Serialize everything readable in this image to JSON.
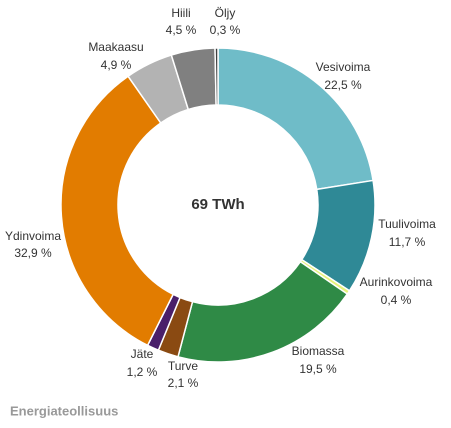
{
  "chart_data": {
    "type": "donut",
    "center_text": "69 TWh",
    "source": "Energiateollisuus",
    "categories": [
      "Vesivoima",
      "Tuulivoima",
      "Aurinkovoima",
      "Biomassa",
      "Turve",
      "Jäte",
      "Ydinvoima",
      "Maakaasu",
      "Hiili",
      "Öljy"
    ],
    "values": [
      22.5,
      11.7,
      0.4,
      19.5,
      2.1,
      1.2,
      32.9,
      4.9,
      4.5,
      0.3
    ],
    "value_labels": [
      "22,5 %",
      "11,7 %",
      "0,4 %",
      "19,5 %",
      "2,1 %",
      "1,2 %",
      "32,9 %",
      "4,9 %",
      "4,5 %",
      "0,3 %"
    ],
    "colors": [
      "#6fbcc8",
      "#2f8996",
      "#e6f27a",
      "#2f8a46",
      "#8a4a12",
      "#4a1f6a",
      "#e27c00",
      "#b3b3b3",
      "#808080",
      "#3f3f3f"
    ]
  }
}
